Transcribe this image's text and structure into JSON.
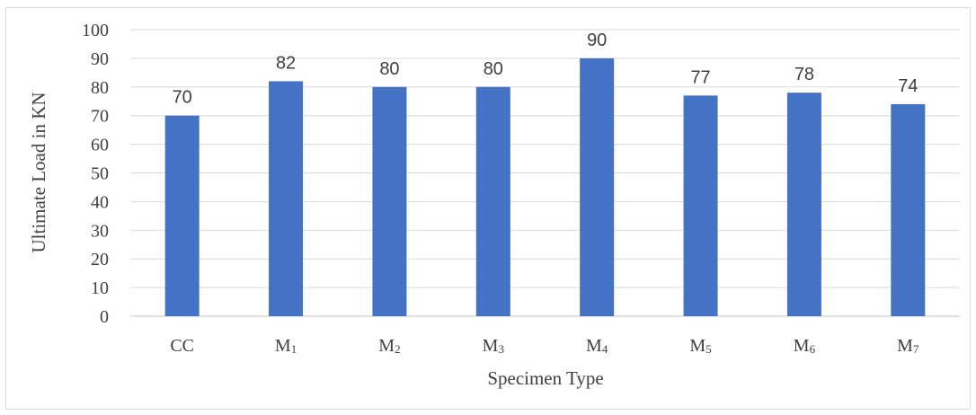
{
  "chart_data": {
    "type": "bar",
    "categories": [
      {
        "base": "CC",
        "sub": ""
      },
      {
        "base": "M",
        "sub": "1"
      },
      {
        "base": "M",
        "sub": "2"
      },
      {
        "base": "M",
        "sub": "3"
      },
      {
        "base": "M",
        "sub": "4"
      },
      {
        "base": "M",
        "sub": "5"
      },
      {
        "base": "M",
        "sub": "6"
      },
      {
        "base": "M",
        "sub": "7"
      }
    ],
    "values": [
      70,
      82,
      80,
      80,
      90,
      77,
      78,
      74
    ],
    "title": "",
    "xlabel": "Specimen Type",
    "ylabel": "Ultimate Load in KN",
    "ylim": [
      0,
      100
    ],
    "yticks": [
      0,
      10,
      20,
      30,
      40,
      50,
      60,
      70,
      80,
      90,
      100
    ],
    "grid": true,
    "bar_color": "#4472c4",
    "data_labels": true
  }
}
